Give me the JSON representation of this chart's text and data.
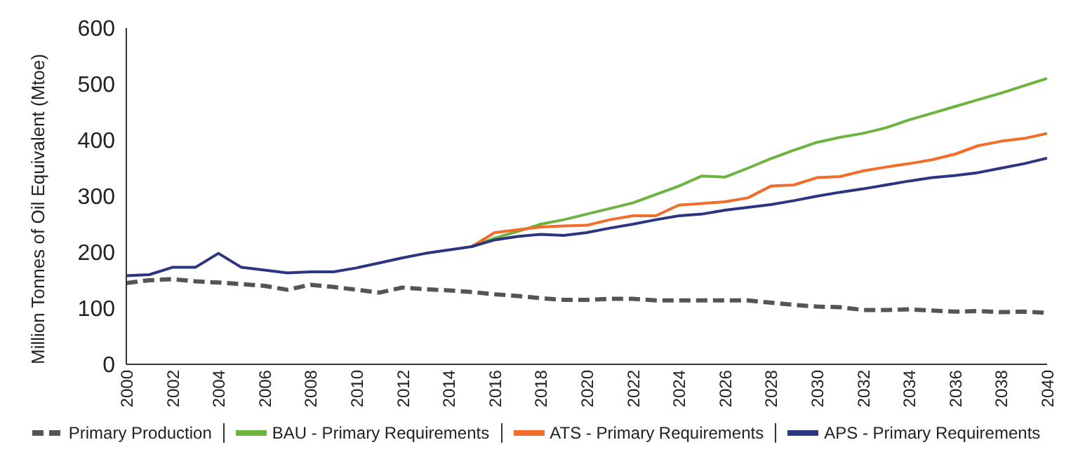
{
  "chart_data": {
    "type": "line",
    "ylabel": "Million Tonnes of Oil Equivalent (Mtoe)",
    "x": [
      2000,
      2001,
      2002,
      2003,
      2004,
      2005,
      2006,
      2007,
      2008,
      2009,
      2010,
      2011,
      2012,
      2013,
      2014,
      2015,
      2016,
      2017,
      2018,
      2019,
      2020,
      2021,
      2022,
      2023,
      2024,
      2025,
      2026,
      2027,
      2028,
      2029,
      2030,
      2031,
      2032,
      2033,
      2034,
      2035,
      2036,
      2037,
      2038,
      2039,
      2040
    ],
    "series": [
      {
        "name": "Primary Production",
        "color": "#555555",
        "line_style": "dashed",
        "values": [
          145,
          150,
          152,
          148,
          146,
          143,
          140,
          133,
          142,
          138,
          133,
          128,
          137,
          134,
          132,
          129,
          125,
          122,
          118,
          115,
          115,
          117,
          117,
          114,
          114,
          114,
          114,
          114,
          110,
          106,
          103,
          102,
          97,
          97,
          98,
          96,
          94,
          95,
          93,
          94,
          92
        ]
      },
      {
        "name": "BAU - Primary Requirements",
        "color": "#6db33f",
        "values": [
          null,
          null,
          null,
          null,
          null,
          null,
          null,
          null,
          null,
          null,
          null,
          null,
          null,
          null,
          null,
          210,
          225,
          237,
          250,
          258,
          268,
          278,
          288,
          303,
          318,
          336,
          334,
          350,
          367,
          382,
          396,
          405,
          412,
          422,
          436,
          448,
          460,
          472,
          484,
          497,
          510
        ]
      },
      {
        "name": "ATS - Primary Requirements",
        "color": "#f26c2a",
        "values": [
          null,
          null,
          null,
          null,
          null,
          null,
          null,
          null,
          null,
          null,
          null,
          null,
          null,
          null,
          null,
          210,
          235,
          240,
          245,
          247,
          248,
          258,
          265,
          265,
          284,
          287,
          290,
          297,
          318,
          320,
          333,
          335,
          345,
          352,
          358,
          365,
          375,
          390,
          398,
          403,
          412
        ]
      },
      {
        "name": "APS - Primary Requirements",
        "color": "#2b3580",
        "values": [
          158,
          160,
          173,
          173,
          198,
          173,
          168,
          163,
          165,
          165,
          172,
          181,
          190,
          198,
          204,
          210,
          222,
          228,
          232,
          230,
          235,
          243,
          250,
          258,
          265,
          268,
          275,
          280,
          285,
          292,
          300,
          307,
          313,
          320,
          327,
          333,
          337,
          342,
          350,
          358,
          368
        ]
      }
    ],
    "xlim": [
      2000,
      2040
    ],
    "xticks": [
      2000,
      2002,
      2004,
      2006,
      2008,
      2010,
      2012,
      2014,
      2016,
      2018,
      2020,
      2022,
      2024,
      2026,
      2028,
      2030,
      2032,
      2034,
      2036,
      2038,
      2040
    ],
    "ylim": [
      0,
      600
    ],
    "yticks": [
      0,
      100,
      200,
      300,
      400,
      500,
      600
    ],
    "grid": false,
    "legend": "bottom",
    "marker": "none",
    "line_style": "solid"
  }
}
